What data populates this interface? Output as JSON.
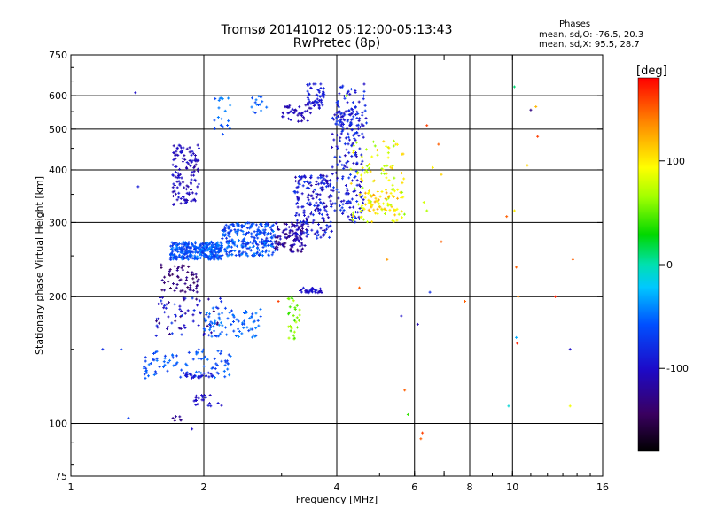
{
  "header": {
    "title_line1": "Tromsø 20141012 05:12:00-05:13:43",
    "title_line2": "RwPretec (8p)"
  },
  "stats": {
    "heading": "Phases",
    "line1": "mean, sd,O: -76.5, 20.3",
    "line2": "mean, sd,X:  95.5, 28.7"
  },
  "colorbar": {
    "unit_label": "[deg]",
    "ticks": [
      "100",
      "0",
      "-100"
    ],
    "tick_values": [
      100,
      0,
      -100
    ],
    "range": [
      -180,
      180
    ]
  },
  "chart_data": {
    "type": "scatter",
    "xlabel": "Frequency [MHz]",
    "ylabel": "Stationary phase Virtual Height [km]",
    "x_scale": "log",
    "y_scale": "log",
    "xlim": [
      1,
      16
    ],
    "ylim": [
      75,
      750
    ],
    "x_ticks": [
      {
        "v": 1,
        "label": "1"
      },
      {
        "v": 2,
        "label": "2"
      },
      {
        "v": 4,
        "label": "4"
      },
      {
        "v": 6,
        "label": "6"
      },
      {
        "v": 7,
        "label": ""
      },
      {
        "v": 8,
        "label": "8"
      },
      {
        "v": 10,
        "label": "10"
      },
      {
        "v": 16,
        "label": "16"
      }
    ],
    "y_ticks": [
      {
        "v": 75,
        "label": "75"
      },
      {
        "v": 100,
        "label": "100"
      },
      {
        "v": 200,
        "label": "200"
      },
      {
        "v": 300,
        "label": "300"
      },
      {
        "v": 400,
        "label": "400"
      },
      {
        "v": 500,
        "label": "500"
      },
      {
        "v": 600,
        "label": "600"
      },
      {
        "v": 750,
        "label": "750"
      }
    ],
    "grid_x": [
      2,
      4,
      6,
      8,
      10
    ],
    "grid_y": [
      100,
      200,
      300,
      400,
      500,
      600
    ],
    "grid": true,
    "clusters": [
      {
        "f": [
          1.68,
          2.2
        ],
        "h": [
          245,
          270
        ],
        "phase": [
          -80,
          -40
        ],
        "n": 320
      },
      {
        "f": [
          2.2,
          2.9
        ],
        "h": [
          250,
          300
        ],
        "phase": [
          -85,
          -40
        ],
        "n": 260
      },
      {
        "f": [
          2.9,
          3.4
        ],
        "h": [
          255,
          300
        ],
        "phase": [
          -140,
          -95
        ],
        "n": 110
      },
      {
        "f": [
          3.2,
          3.9
        ],
        "h": [
          275,
          390
        ],
        "phase": [
          -120,
          -70
        ],
        "n": 190
      },
      {
        "f": [
          3.9,
          4.6
        ],
        "h": [
          300,
          560
        ],
        "phase": [
          -110,
          -70
        ],
        "n": 170
      },
      {
        "f": [
          4.0,
          4.7
        ],
        "h": [
          470,
          640
        ],
        "phase": [
          -110,
          -70
        ],
        "n": 70
      },
      {
        "f": [
          3.4,
          3.75
        ],
        "h": [
          560,
          640
        ],
        "phase": [
          -105,
          -80
        ],
        "n": 55
      },
      {
        "f": [
          3.0,
          3.5
        ],
        "h": [
          520,
          570
        ],
        "phase": [
          -120,
          -95
        ],
        "n": 40
      },
      {
        "f": [
          4.3,
          5.7
        ],
        "h": [
          300,
          470
        ],
        "phase": [
          60,
          115
        ],
        "n": 120
      },
      {
        "f": [
          4.5,
          5.5
        ],
        "h": [
          320,
          360
        ],
        "phase": [
          90,
          130
        ],
        "n": 40
      },
      {
        "f": [
          1.7,
          1.95
        ],
        "h": [
          330,
          460
        ],
        "phase": [
          -120,
          -90
        ],
        "n": 120
      },
      {
        "f": [
          1.6,
          1.95
        ],
        "h": [
          205,
          240
        ],
        "phase": [
          -150,
          -120
        ],
        "n": 60
      },
      {
        "f": [
          1.55,
          2.2
        ],
        "h": [
          160,
          200
        ],
        "phase": [
          -140,
          -70
        ],
        "n": 70
      },
      {
        "f": [
          2.0,
          2.7
        ],
        "h": [
          160,
          190
        ],
        "phase": [
          -70,
          -40
        ],
        "n": 80
      },
      {
        "f": [
          1.45,
          2.3
        ],
        "h": [
          128,
          150
        ],
        "phase": [
          -75,
          -45
        ],
        "n": 90
      },
      {
        "f": [
          1.8,
          2.1
        ],
        "h": [
          128,
          132
        ],
        "phase": [
          -100,
          -85
        ],
        "n": 30
      },
      {
        "f": [
          1.9,
          2.2
        ],
        "h": [
          110,
          117
        ],
        "phase": [
          -110,
          -90
        ],
        "n": 20
      },
      {
        "f": [
          3.1,
          3.3
        ],
        "h": [
          155,
          200
        ],
        "phase": [
          40,
          75
        ],
        "n": 30
      },
      {
        "f": [
          3.3,
          3.7
        ],
        "h": [
          204,
          210
        ],
        "phase": [
          -110,
          -90
        ],
        "n": 30
      },
      {
        "f": [
          2.1,
          2.3
        ],
        "h": [
          480,
          600
        ],
        "phase": [
          -70,
          -40
        ],
        "n": 20
      },
      {
        "f": [
          2.5,
          2.8
        ],
        "h": [
          540,
          600
        ],
        "phase": [
          -70,
          -40
        ],
        "n": 15
      },
      {
        "f": [
          1.7,
          1.8
        ],
        "h": [
          100,
          104
        ],
        "phase": [
          -140,
          -120
        ],
        "n": 6
      }
    ],
    "scatter_points": [
      {
        "f": 1.4,
        "h": 610,
        "phase": -100
      },
      {
        "f": 1.42,
        "h": 365,
        "phase": -90
      },
      {
        "f": 1.3,
        "h": 150,
        "phase": -70
      },
      {
        "f": 1.18,
        "h": 150,
        "phase": -80
      },
      {
        "f": 1.35,
        "h": 103,
        "phase": -70
      },
      {
        "f": 1.88,
        "h": 97,
        "phase": -100
      },
      {
        "f": 6.2,
        "h": 92,
        "phase": 150
      },
      {
        "f": 6.25,
        "h": 95,
        "phase": 160
      },
      {
        "f": 6.4,
        "h": 320,
        "phase": 70
      },
      {
        "f": 6.3,
        "h": 335,
        "phase": 80
      },
      {
        "f": 6.5,
        "h": 205,
        "phase": -80
      },
      {
        "f": 6.9,
        "h": 390,
        "phase": 110
      },
      {
        "f": 6.9,
        "h": 270,
        "phase": 150
      },
      {
        "f": 6.8,
        "h": 460,
        "phase": 150
      },
      {
        "f": 6.6,
        "h": 405,
        "phase": 100
      },
      {
        "f": 6.1,
        "h": 172,
        "phase": -110
      },
      {
        "f": 5.7,
        "h": 120,
        "phase": 150
      },
      {
        "f": 5.6,
        "h": 180,
        "phase": -100
      },
      {
        "f": 5.8,
        "h": 105,
        "phase": 40
      },
      {
        "f": 6.4,
        "h": 510,
        "phase": 160
      },
      {
        "f": 9.7,
        "h": 310,
        "phase": 150
      },
      {
        "f": 10.1,
        "h": 320,
        "phase": 100
      },
      {
        "f": 10.1,
        "h": 630,
        "phase": 10
      },
      {
        "f": 10.2,
        "h": 235,
        "phase": 150
      },
      {
        "f": 10.3,
        "h": 200,
        "phase": 140
      },
      {
        "f": 10.2,
        "h": 160,
        "phase": -30
      },
      {
        "f": 10.25,
        "h": 155,
        "phase": 170
      },
      {
        "f": 9.8,
        "h": 110,
        "phase": -10
      },
      {
        "f": 11.0,
        "h": 555,
        "phase": -130
      },
      {
        "f": 11.3,
        "h": 565,
        "phase": 120
      },
      {
        "f": 11.4,
        "h": 480,
        "phase": 160
      },
      {
        "f": 12.5,
        "h": 200,
        "phase": 170
      },
      {
        "f": 13.7,
        "h": 245,
        "phase": 150
      },
      {
        "f": 13.5,
        "h": 150,
        "phase": -100
      },
      {
        "f": 13.5,
        "h": 110,
        "phase": 90
      },
      {
        "f": 10.8,
        "h": 410,
        "phase": 110
      },
      {
        "f": 7.8,
        "h": 195,
        "phase": 150
      },
      {
        "f": 4.5,
        "h": 210,
        "phase": 150
      },
      {
        "f": 2.95,
        "h": 195,
        "phase": 160
      },
      {
        "f": 4.2,
        "h": 600,
        "phase": 60
      },
      {
        "f": 5.2,
        "h": 245,
        "phase": 130
      }
    ]
  }
}
